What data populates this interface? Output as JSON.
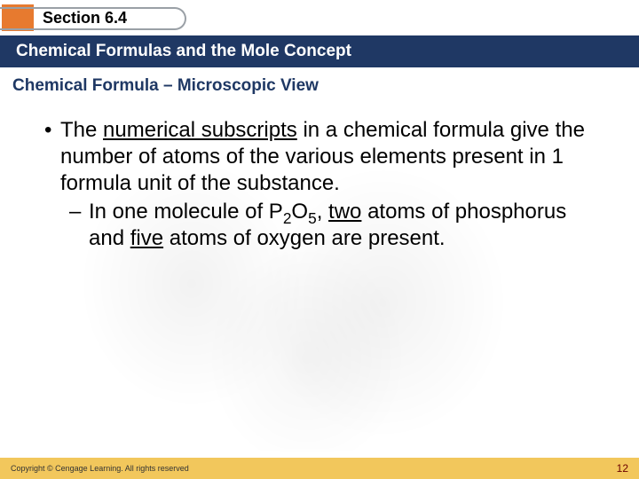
{
  "colors": {
    "swatch": "#e77a2f",
    "pill_border": "#9aa0a6",
    "titlebar_bg": "#1f3864",
    "titlebar_fg": "#ffffff",
    "subtitle": "#1f3864",
    "footer_bg": "#f2c75c",
    "pagenum": "#6b0000"
  },
  "header": {
    "section_label": "Section 6.4"
  },
  "title": "Chemical Formulas and the Mole Concept",
  "subtitle": "Chemical Formula – Microscopic View",
  "body": {
    "bullet_pre": "The ",
    "bullet_ul": "numerical subscripts",
    "bullet_post": " in a chemical formula give the number of atoms of the various elements present in 1 formula unit of the substance.",
    "dash_pre": "In one molecule of ",
    "dash_formula_el1": "P",
    "dash_formula_sub1": "2",
    "dash_formula_el2": "O",
    "dash_formula_sub2": "5",
    "dash_mid1": ", ",
    "dash_ul1": "two",
    "dash_mid2": " atoms of phosphorus and ",
    "dash_ul2": "five",
    "dash_post": " atoms of oxygen are present."
  },
  "footer": {
    "copyright": "Copyright © Cengage Learning. All rights reserved",
    "page": "12"
  }
}
